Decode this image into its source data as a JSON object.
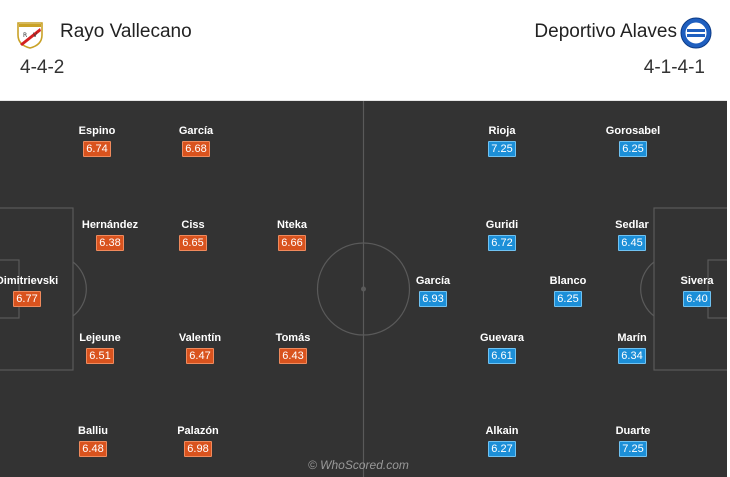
{
  "home": {
    "name": "Rayo Vallecano",
    "formation": "4-4-2",
    "players": [
      {
        "name": "Dimitrievski",
        "rating": "6.77"
      },
      {
        "name": "Espino",
        "rating": "6.74"
      },
      {
        "name": "García",
        "rating": "6.68"
      },
      {
        "name": "Hernández",
        "rating": "6.38"
      },
      {
        "name": "Ciss",
        "rating": "6.65"
      },
      {
        "name": "Nteka",
        "rating": "6.66"
      },
      {
        "name": "Lejeune",
        "rating": "6.51"
      },
      {
        "name": "Valentín",
        "rating": "6.47"
      },
      {
        "name": "Tomás",
        "rating": "6.43"
      },
      {
        "name": "Balliu",
        "rating": "6.48"
      },
      {
        "name": "Palazón",
        "rating": "6.98"
      }
    ]
  },
  "away": {
    "name": "Deportivo Alaves",
    "formation": "4-1-4-1",
    "players": [
      {
        "name": "Sivera",
        "rating": "6.40"
      },
      {
        "name": "Rioja",
        "rating": "7.25"
      },
      {
        "name": "Gorosabel",
        "rating": "6.25"
      },
      {
        "name": "Guridi",
        "rating": "6.72"
      },
      {
        "name": "Sedlar",
        "rating": "6.45"
      },
      {
        "name": "García",
        "rating": "6.93"
      },
      {
        "name": "Blanco",
        "rating": "6.25"
      },
      {
        "name": "Guevara",
        "rating": "6.61"
      },
      {
        "name": "Marín",
        "rating": "6.34"
      },
      {
        "name": "Alkain",
        "rating": "6.27"
      },
      {
        "name": "Duarte",
        "rating": "7.25"
      }
    ]
  },
  "watermark": "© WhoScored.com",
  "colors": {
    "home_rating": "#d9531e",
    "away_rating": "#1c8fd8",
    "pitch": "#333333"
  }
}
